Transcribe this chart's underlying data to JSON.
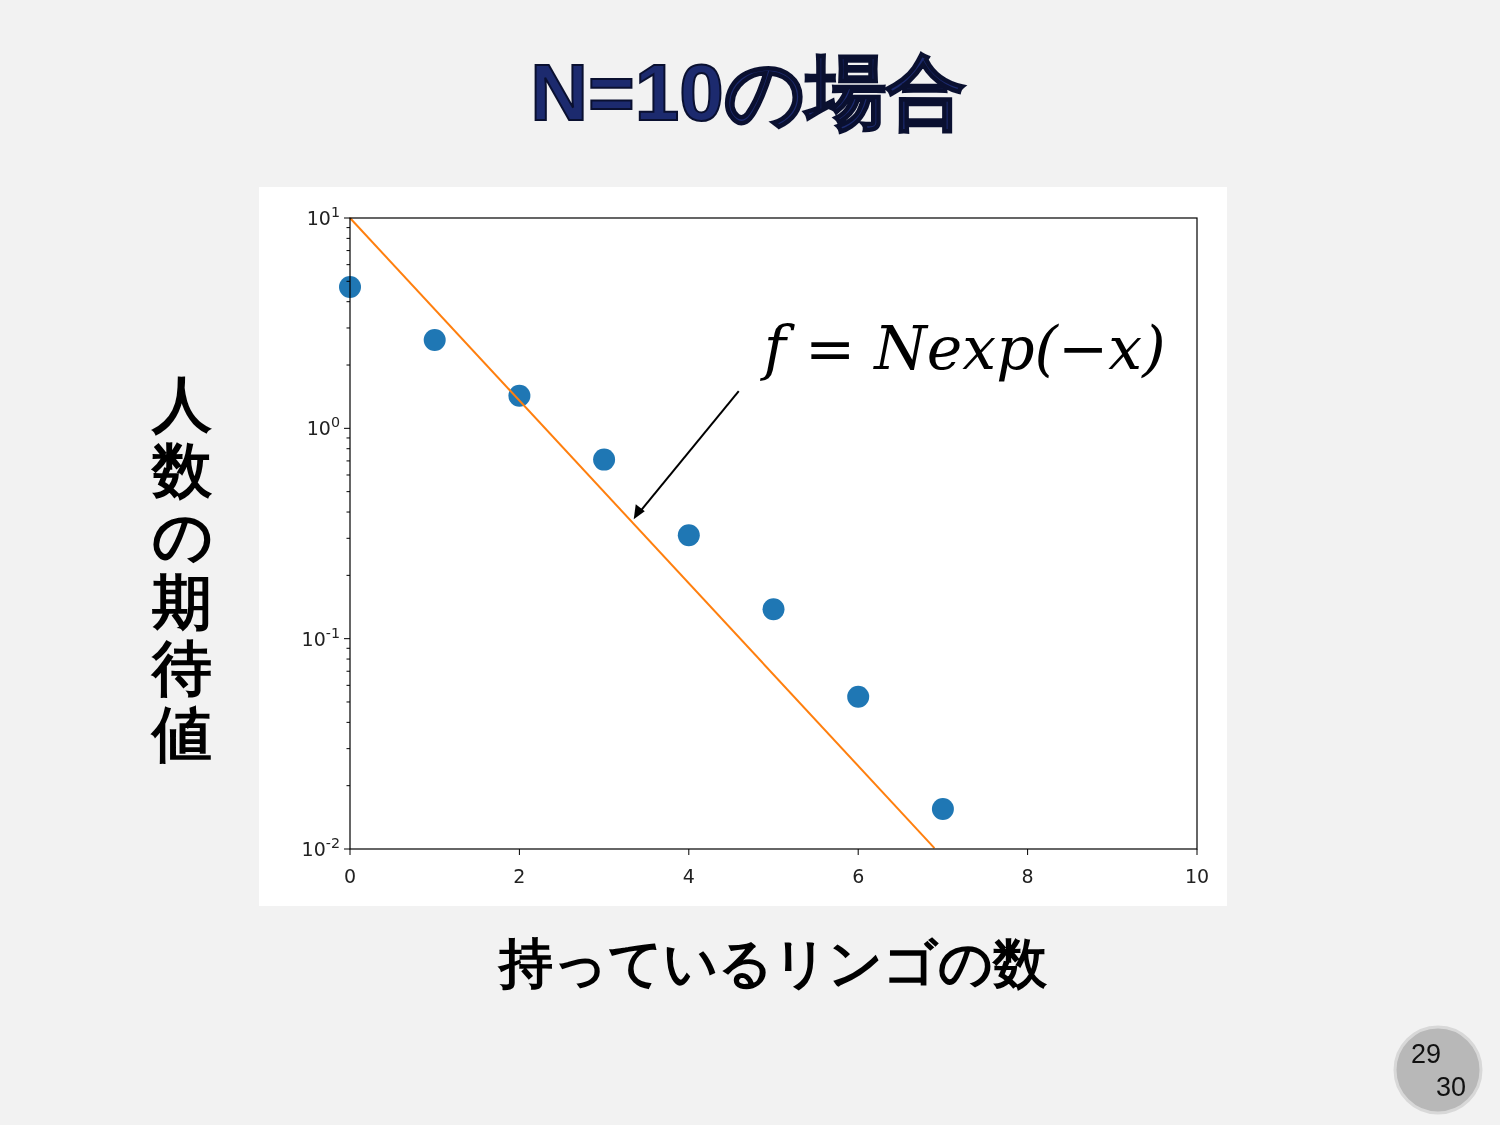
{
  "chart_data": {
    "type": "scatter",
    "title": "N=10の場合",
    "xlabel": "持っているリンゴの数",
    "ylabel": "人数の期待値",
    "log": "y",
    "grid": false,
    "xlim": [
      0,
      10
    ],
    "xticks": [
      0,
      2,
      4,
      6,
      8,
      10
    ],
    "ylim": [
      0.01,
      10
    ],
    "yticks": [
      {
        "value": 0.01,
        "label": "10$^{-2}$"
      },
      {
        "value": 0.02,
        "label": null
      },
      {
        "value": 0.03,
        "label": null
      },
      {
        "value": 0.04,
        "label": null
      },
      {
        "value": 0.05,
        "label": null
      },
      {
        "value": 0.06,
        "label": null
      },
      {
        "value": 0.07,
        "label": null
      },
      {
        "value": 0.08,
        "label": null
      },
      {
        "value": 0.09,
        "label": null
      },
      {
        "value": 0.1,
        "label": "10$^{-1}$"
      },
      {
        "value": 0.2,
        "label": null
      },
      {
        "value": 0.3,
        "label": null
      },
      {
        "value": 0.4,
        "label": null
      },
      {
        "value": 0.5,
        "label": null
      },
      {
        "value": 0.6,
        "label": null
      },
      {
        "value": 0.7,
        "label": null
      },
      {
        "value": 0.8,
        "label": null
      },
      {
        "value": 0.9,
        "label": null
      },
      {
        "value": 1,
        "label": "10$^{0}$"
      },
      {
        "value": 2,
        "label": null
      },
      {
        "value": 3,
        "label": null
      },
      {
        "value": 4,
        "label": null
      },
      {
        "value": 5,
        "label": null
      },
      {
        "value": 6,
        "label": null
      },
      {
        "value": 7,
        "label": null
      },
      {
        "value": 8,
        "label": null
      },
      {
        "value": 9,
        "label": null
      },
      {
        "value": 10,
        "label": "10$^{1}$"
      }
    ],
    "series": [
      {
        "color": "#1f77b4",
        "marker": "circle",
        "x": [
          0,
          1,
          2,
          3,
          4,
          5,
          6,
          7
        ],
        "values": [
          4.7,
          2.63,
          1.43,
          0.71,
          0.31,
          0.138,
          0.053,
          0.0155
        ]
      },
      {
        "type": "line",
        "color": "#ff7f0e",
        "marker": "none",
        "x": [
          0,
          6.9
        ],
        "values": [
          10,
          0.0101
        ]
      }
    ],
    "annotations": [
      {
        "text": "f = Nexp(−x)",
        "x": 3.35,
        "y": 0.37
      },
      "29",
      "30"
    ]
  }
}
